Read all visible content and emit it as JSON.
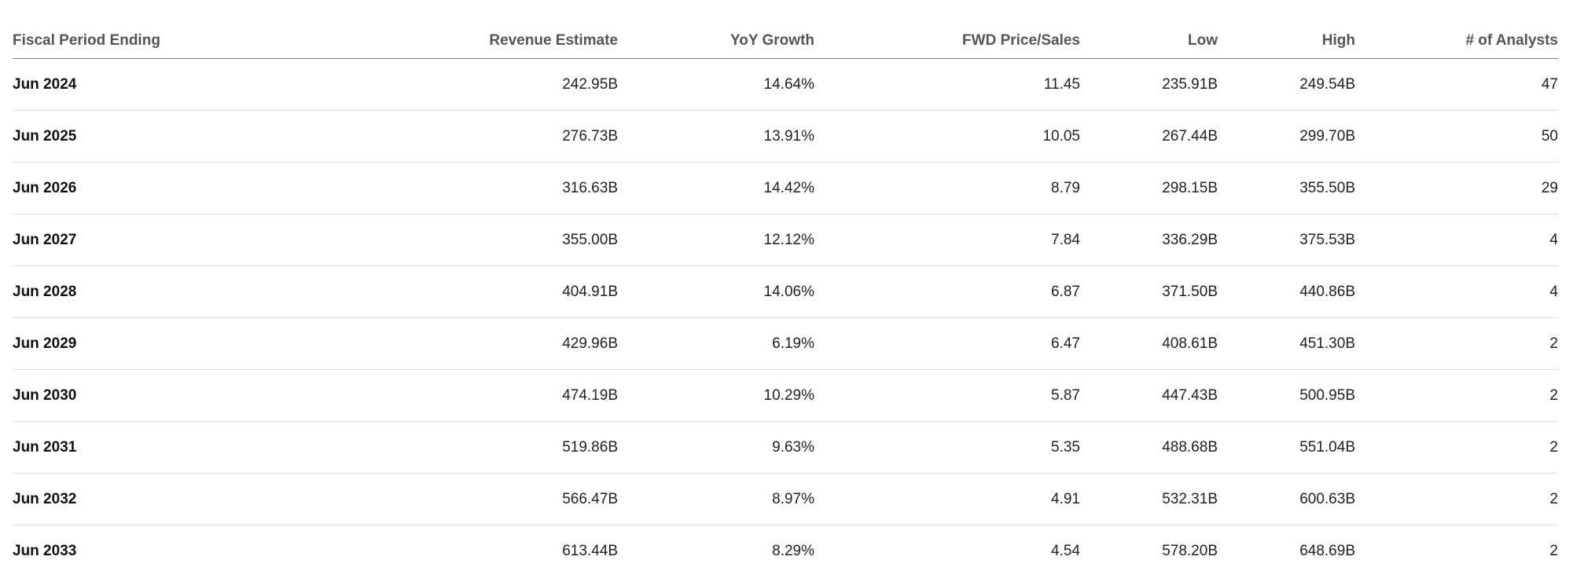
{
  "table": {
    "headers": [
      "Fiscal Period Ending",
      "Revenue Estimate",
      "YoY Growth",
      "FWD Price/Sales",
      "Low",
      "High",
      "# of Analysts"
    ],
    "rows": [
      [
        "Jun 2024",
        "242.95B",
        "14.64%",
        "11.45",
        "235.91B",
        "249.54B",
        "47"
      ],
      [
        "Jun 2025",
        "276.73B",
        "13.91%",
        "10.05",
        "267.44B",
        "299.70B",
        "50"
      ],
      [
        "Jun 2026",
        "316.63B",
        "14.42%",
        "8.79",
        "298.15B",
        "355.50B",
        "29"
      ],
      [
        "Jun 2027",
        "355.00B",
        "12.12%",
        "7.84",
        "336.29B",
        "375.53B",
        "4"
      ],
      [
        "Jun 2028",
        "404.91B",
        "14.06%",
        "6.87",
        "371.50B",
        "440.86B",
        "4"
      ],
      [
        "Jun 2029",
        "429.96B",
        "6.19%",
        "6.47",
        "408.61B",
        "451.30B",
        "2"
      ],
      [
        "Jun 2030",
        "474.19B",
        "10.29%",
        "5.87",
        "447.43B",
        "500.95B",
        "2"
      ],
      [
        "Jun 2031",
        "519.86B",
        "9.63%",
        "5.35",
        "488.68B",
        "551.04B",
        "2"
      ],
      [
        "Jun 2032",
        "566.47B",
        "8.97%",
        "4.91",
        "532.31B",
        "600.63B",
        "2"
      ],
      [
        "Jun 2033",
        "613.44B",
        "8.29%",
        "4.54",
        "578.20B",
        "648.69B",
        "2"
      ]
    ]
  }
}
